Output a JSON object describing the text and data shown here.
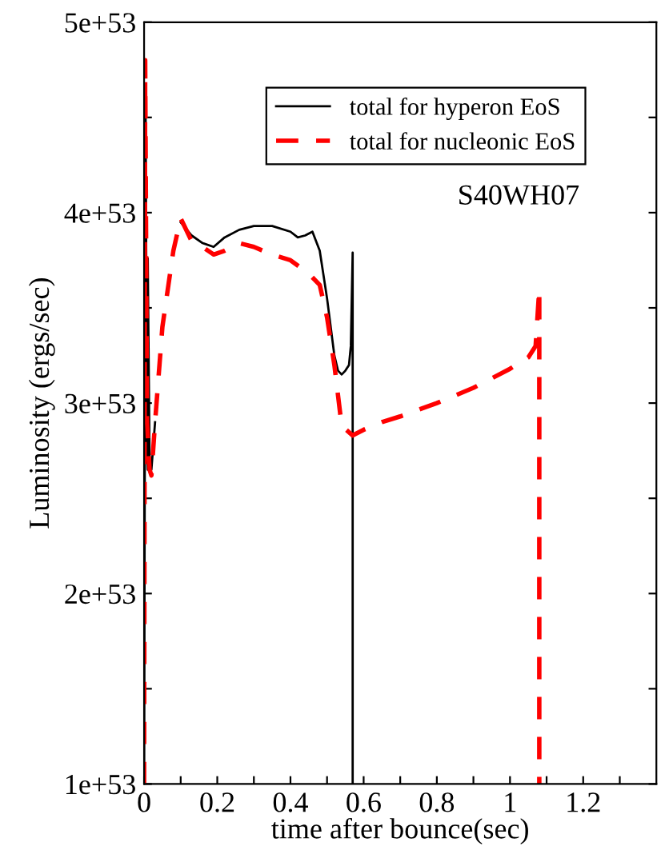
{
  "chart_data": {
    "type": "line",
    "xlabel": "time after bounce(sec)",
    "ylabel": "Luminosity (ergs/sec)",
    "annotations": [
      "S40WH07"
    ],
    "xlim": [
      0,
      1.4
    ],
    "ylim": [
      1e+53,
      5e+53
    ],
    "xticks": [
      0,
      {
        "value": 0.1,
        "label": null
      },
      0.2,
      {
        "value": 0.3,
        "label": null
      },
      0.4,
      {
        "value": 0.5,
        "label": null
      },
      0.6,
      {
        "value": 0.7,
        "label": null
      },
      0.8,
      {
        "value": 0.9,
        "label": null
      },
      {
        "value": 1.0,
        "label": "1"
      },
      {
        "value": 1.1,
        "label": null
      },
      1.2,
      {
        "value": 1.3,
        "label": null
      }
    ],
    "yticks": [
      {
        "value": 1e+53,
        "label": "1e+53"
      },
      {
        "value": 1.5e+53,
        "label": null
      },
      {
        "value": 2e+53,
        "label": "2e+53"
      },
      {
        "value": 2.5e+53,
        "label": null
      },
      {
        "value": 3e+53,
        "label": "3e+53"
      },
      {
        "value": 3.5e+53,
        "label": null
      },
      {
        "value": 4e+53,
        "label": "4e+53"
      },
      {
        "value": 4.5e+53,
        "label": null
      },
      {
        "value": 5e+53,
        "label": "5e+53"
      }
    ],
    "grid": false,
    "legend": "top",
    "marker": "none",
    "series": [
      {
        "name": "total for hyperon EoS",
        "color": "#000000",
        "line_style": "solid",
        "x": [
          0,
          0.004,
          0.008,
          0.01,
          0.01,
          0.015,
          0.02,
          0.03,
          0.05,
          0.08,
          0.1,
          0.13,
          0.16,
          0.19,
          0.22,
          0.26,
          0.3,
          0.35,
          0.4,
          0.42,
          0.44,
          0.46,
          0.48,
          0.5,
          0.52,
          0.53,
          0.54,
          0.55,
          0.56,
          0.565,
          0.57,
          0.57
        ],
        "values": [
          1e+53,
          4.6e+53,
          2.8e+53,
          2.65e+53,
          3.76e+53,
          2.7e+53,
          2.65e+53,
          2.9e+53,
          null,
          null,
          3.95e+53,
          3.88e+53,
          3.84e+53,
          3.82e+53,
          3.87e+53,
          3.91e+53,
          3.93e+53,
          3.93e+53,
          3.9e+53,
          3.87e+53,
          3.88e+53,
          3.9e+53,
          3.8e+53,
          3.55e+53,
          3.25e+53,
          3.17e+53,
          3.15e+53,
          3.17e+53,
          3.2e+53,
          3.3e+53,
          3.79e+53,
          1e+53
        ]
      },
      {
        "name": "total for nucleonic EoS",
        "color": "#ff0000",
        "line_style": "dashed",
        "x": [
          0,
          0.003,
          0.008,
          0.015,
          0.02,
          0.03,
          0.05,
          0.08,
          0.1,
          0.13,
          0.16,
          0.19,
          0.22,
          0.26,
          0.3,
          0.35,
          0.4,
          0.45,
          0.48,
          0.5,
          0.52,
          0.54,
          0.57,
          0.6,
          0.65,
          0.7,
          0.8,
          0.9,
          1.0,
          1.05,
          1.07,
          1.08,
          1.08
        ],
        "values": [
          1e+53,
          4.8e+53,
          2.9e+53,
          2.65e+53,
          2.62e+53,
          2.9e+53,
          3.4e+53,
          3.8e+53,
          3.97e+53,
          3.85e+53,
          3.82e+53,
          3.78e+53,
          3.8e+53,
          3.84e+53,
          3.82e+53,
          3.78e+53,
          3.75e+53,
          3.68e+53,
          3.62e+53,
          3.45e+53,
          3.2e+53,
          2.88e+53,
          2.83e+53,
          2.86e+53,
          2.9e+53,
          2.93e+53,
          3e+53,
          3.08e+53,
          3.18e+53,
          3.24e+53,
          3.3e+53,
          3.6e+53,
          1e+53
        ]
      }
    ]
  }
}
